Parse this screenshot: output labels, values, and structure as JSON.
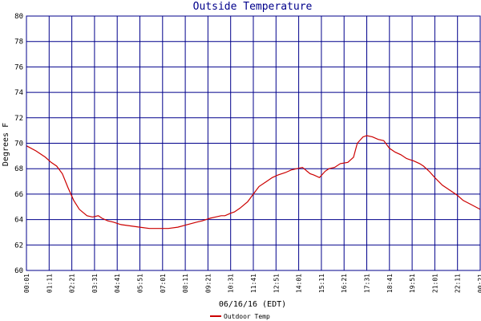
{
  "chart_data": {
    "type": "line",
    "title": "Outside Temperature",
    "xlabel": "06/16/16 (EDT)",
    "ylabel": "Degrees F",
    "ylim": [
      60,
      80
    ],
    "yticks": [
      60,
      62,
      64,
      66,
      68,
      70,
      72,
      74,
      76,
      78,
      80
    ],
    "xlim": [
      0,
      24
    ],
    "grid": true,
    "legend_position": "bottom-left",
    "colors": {
      "line": "#cc0000",
      "grid": "#00008b",
      "title": "#00008b"
    },
    "x_tick_labels": [
      "00:01",
      "01:11",
      "02:21",
      "03:31",
      "04:41",
      "05:51",
      "07:01",
      "08:11",
      "09:21",
      "10:31",
      "11:41",
      "12:51",
      "14:01",
      "15:11",
      "16:21",
      "17:31",
      "18:41",
      "19:51",
      "21:01",
      "22:11",
      "00:21"
    ],
    "series": [
      {
        "name": "Outdoor Temp",
        "x": [
          0,
          0.5,
          1.0,
          1.3,
          1.6,
          1.9,
          2.2,
          2.5,
          2.8,
          3.2,
          3.5,
          3.8,
          4.0,
          4.3,
          4.6,
          5.0,
          5.5,
          6.0,
          6.5,
          7.0,
          7.5,
          8.0,
          8.5,
          9.0,
          9.3,
          9.7,
          10.0,
          10.3,
          10.5,
          10.8,
          11.0,
          11.3,
          11.7,
          12.0,
          12.3,
          12.7,
          13.0,
          13.3,
          13.7,
          14.0,
          14.3,
          14.6,
          15.0,
          15.2,
          15.5,
          15.8,
          16.0,
          16.3,
          16.6,
          17.0,
          17.3,
          17.5,
          17.8,
          18.0,
          18.3,
          18.6,
          18.9,
          19.2,
          19.5,
          19.8,
          20.1,
          20.5,
          20.8,
          21.0,
          21.3,
          21.6,
          22.0,
          22.4,
          22.8,
          23.1,
          23.5,
          24.0
        ],
        "y": [
          69.8,
          69.4,
          68.9,
          68.5,
          68.2,
          67.6,
          66.5,
          65.5,
          64.8,
          64.3,
          64.2,
          64.3,
          64.1,
          63.9,
          63.8,
          63.6,
          63.5,
          63.4,
          63.3,
          63.3,
          63.3,
          63.4,
          63.6,
          63.8,
          63.9,
          64.1,
          64.2,
          64.3,
          64.3,
          64.5,
          64.6,
          64.9,
          65.4,
          66.0,
          66.6,
          67.0,
          67.3,
          67.5,
          67.7,
          67.9,
          68.0,
          68.1,
          67.6,
          67.5,
          67.3,
          67.8,
          68.0,
          68.1,
          68.4,
          68.5,
          68.9,
          70.0,
          70.5,
          70.6,
          70.5,
          70.3,
          70.2,
          69.6,
          69.3,
          69.1,
          68.8,
          68.6,
          68.4,
          68.2,
          67.8,
          67.3,
          66.7,
          66.3,
          65.9,
          65.5,
          65.2,
          64.8
        ]
      }
    ]
  }
}
